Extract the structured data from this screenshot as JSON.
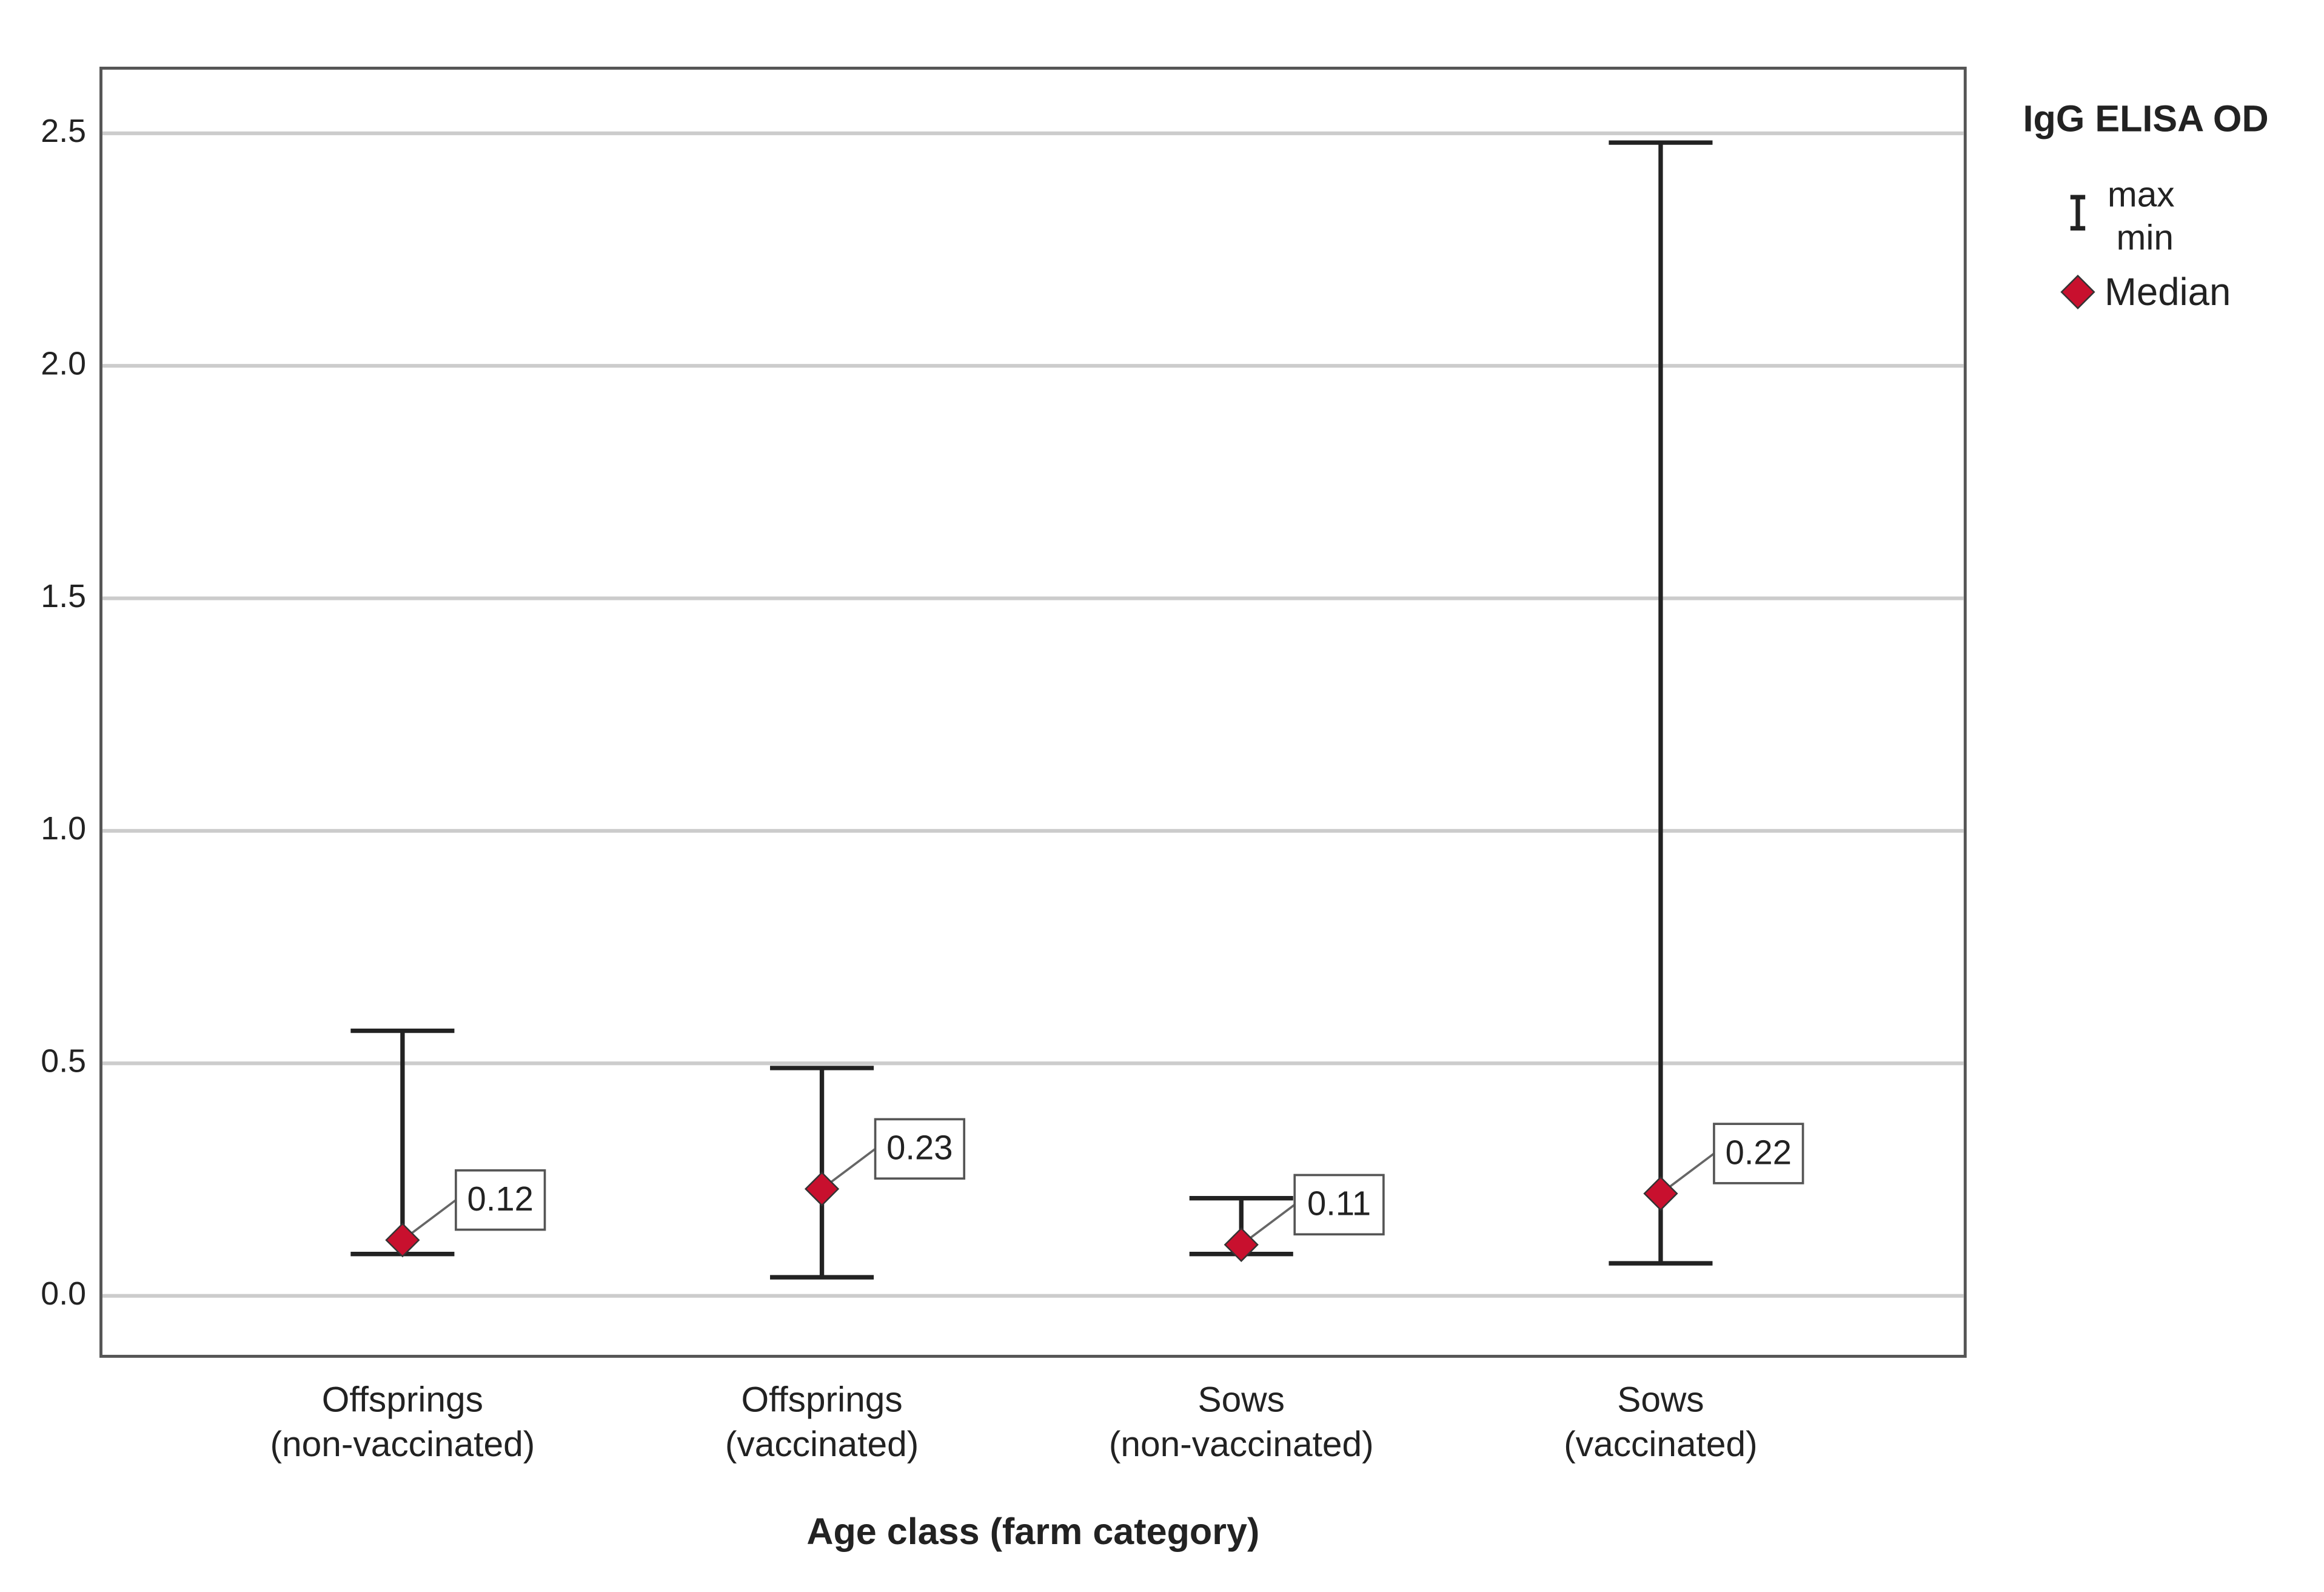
{
  "chart_data": {
    "type": "range",
    "categories": [
      [
        "Offsprings",
        "(non-vaccinated)"
      ],
      [
        "Offsprings",
        "(vaccinated)"
      ],
      [
        "Sows",
        "(non-vaccinated)"
      ],
      [
        "Sows",
        "(vaccinated)"
      ]
    ],
    "series": [
      {
        "name": "max",
        "color": "#222222",
        "values": [
          0.57,
          0.49,
          0.21,
          2.48
        ]
      },
      {
        "name": "min",
        "color": "#222222",
        "values": [
          0.09,
          0.04,
          0.09,
          0.07
        ]
      },
      {
        "name": "Median",
        "color": "#c8102e",
        "values": [
          0.12,
          0.23,
          0.11,
          0.22
        ]
      }
    ],
    "xlabel": "Age class (farm category)",
    "legend_title": "IgG ELISA OD",
    "legend": "right",
    "ylim": [
      -0.13,
      2.64
    ],
    "yticks": [
      {
        "value": 0,
        "label": "0.0"
      },
      0.5,
      {
        "value": 1,
        "label": "1.0"
      },
      1.5,
      {
        "value": 2,
        "label": "2.0"
      },
      2.5
    ],
    "grid": true
  }
}
